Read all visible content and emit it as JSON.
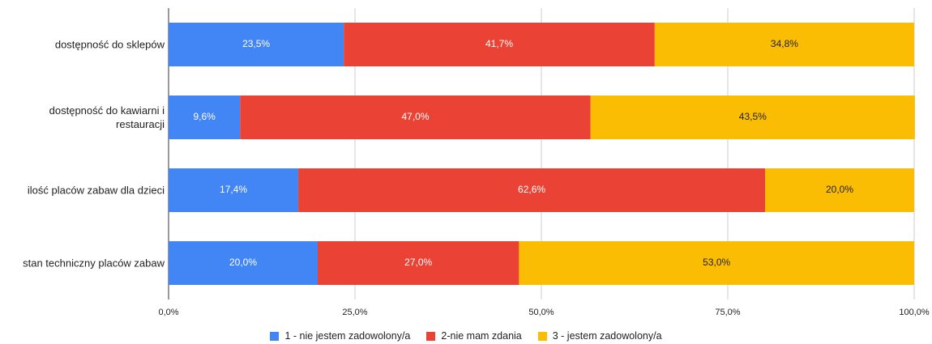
{
  "chart_data": {
    "type": "bar",
    "orientation": "horizontal",
    "stacked": true,
    "categories": [
      "dostępność do sklepów",
      "dostępność do kawiarni i restauracji",
      "ilość placów zabaw dla dzieci",
      "stan techniczny placów zabaw"
    ],
    "series": [
      {
        "name": "1 - nie jestem zadowolony/a",
        "color": "#4285f4",
        "values": [
          23.5,
          9.6,
          17.4,
          20.0
        ],
        "value_labels": [
          "23,5%",
          "9,6%",
          "17,4%",
          "20,0%"
        ]
      },
      {
        "name": "2-nie mam zdania",
        "color": "#ea4335",
        "values": [
          41.7,
          47.0,
          62.6,
          27.0
        ],
        "value_labels": [
          "41,7%",
          "47,0%",
          "62,6%",
          "27,0%"
        ]
      },
      {
        "name": "3 - jestem zadowolony/a",
        "color": "#fbbc04",
        "values": [
          34.8,
          43.5,
          20.0,
          53.0
        ],
        "value_labels": [
          "34,8%",
          "43,5%",
          "20,0%",
          "53,0%"
        ]
      }
    ],
    "xlim": [
      0,
      100
    ],
    "xticks": [
      {
        "value": 0,
        "label": "0,0%"
      },
      {
        "value": 25,
        "label": "25,0%"
      },
      {
        "value": 50,
        "label": "50,0%"
      },
      {
        "value": 75,
        "label": "75,0%"
      },
      {
        "value": 100,
        "label": "100,0%"
      }
    ],
    "grid": true,
    "legend": "bottom"
  }
}
